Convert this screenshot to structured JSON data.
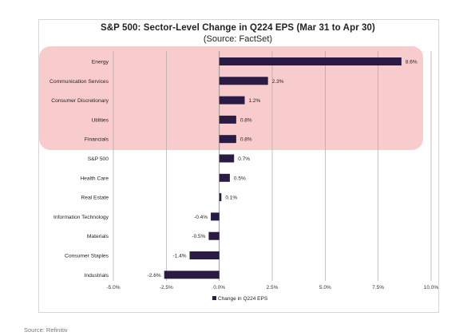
{
  "chart_data": {
    "type": "bar",
    "orientation": "horizontal",
    "title": "S&P 500: Sector-Level Change in Q224 EPS (Mar 31 to Apr 30)",
    "subtitle": "(Source: FactSet)",
    "categories": [
      "Energy",
      "Communication Services",
      "Consumer Discretionary",
      "Utilities",
      "Financials",
      "S&P 500",
      "Health Care",
      "Real Estate",
      "Information Technology",
      "Materials",
      "Consumer Staples",
      "Industrials"
    ],
    "series": [
      {
        "name": "Change in Q224 EPS",
        "values": [
          8.6,
          2.3,
          1.2,
          0.8,
          0.8,
          0.7,
          0.5,
          0.1,
          -0.4,
          -0.5,
          -1.4,
          -2.6
        ],
        "labels": [
          "8.6%",
          "2.3%",
          "1.2%",
          "0.8%",
          "0.8%",
          "0.7%",
          "0.5%",
          "0.1%",
          "-0.4%",
          "-0.5%",
          "-1.4%",
          "-2.6%"
        ]
      }
    ],
    "xlim": [
      -5.0,
      10.0
    ],
    "xticks": [
      -5.0,
      -2.5,
      0.0,
      2.5,
      5.0,
      7.5,
      10.0
    ],
    "xtick_labels": [
      "-5.0%",
      "-2.5%",
      "0.0%",
      "2.5%",
      "5.0%",
      "7.5%",
      "10.0%"
    ],
    "grid": true,
    "legend": "bottom",
    "bar_color": "#2a1b45",
    "highlight_color": "#f7c6c8",
    "highlighted_categories": [
      "Energy",
      "Communication Services",
      "Consumer Discretionary",
      "Utilities",
      "Financials"
    ]
  },
  "footer": {
    "source": "Source: Refinitiv"
  }
}
